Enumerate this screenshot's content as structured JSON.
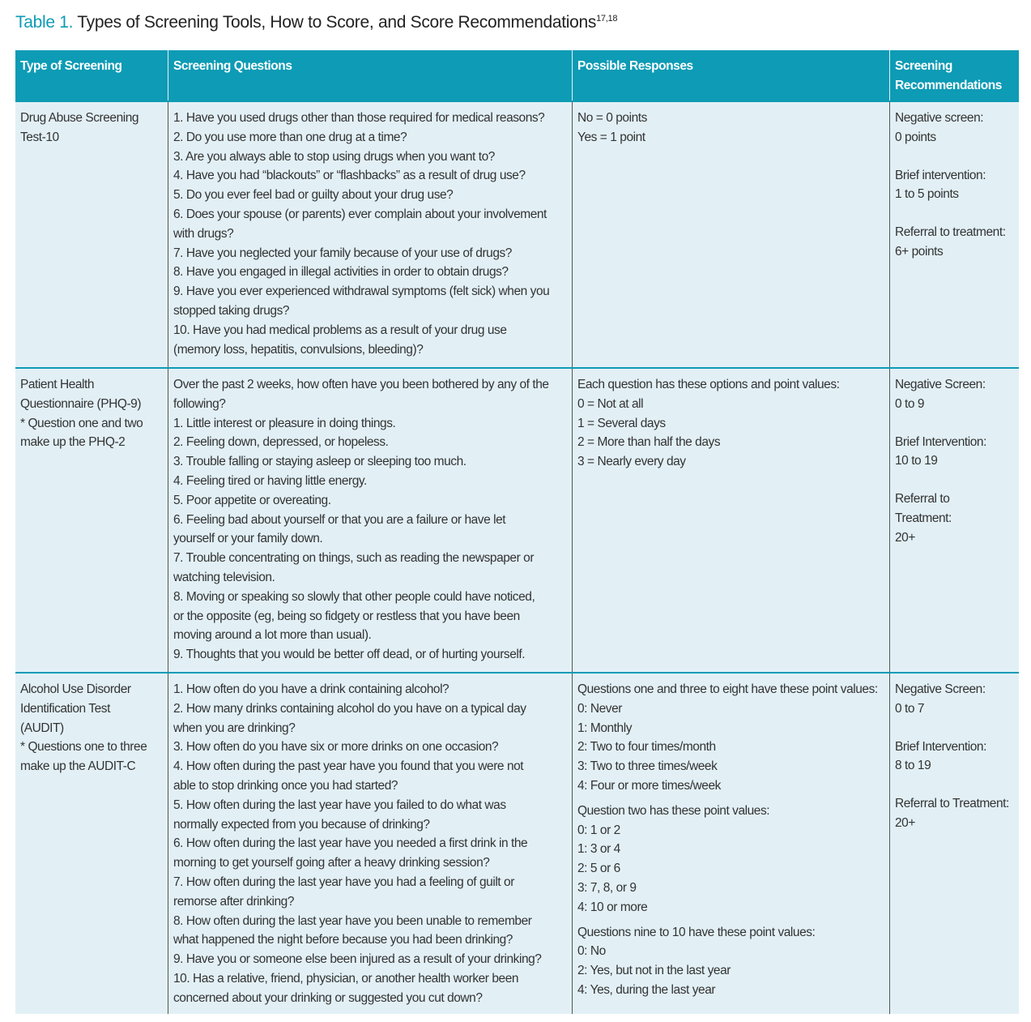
{
  "title": {
    "label": "Table 1.",
    "text": "Types of Screening Tools, How to Score, and Score Recommendations",
    "refs": "17,18"
  },
  "table": {
    "headers": [
      "Type of Screening",
      "Screening Questions",
      "Possible Responses",
      [
        "Screening",
        "Recommendations"
      ]
    ],
    "rows": [
      {
        "type": [
          "Drug Abuse Screening",
          "Test-10"
        ],
        "questions": [
          "1. Have you used drugs other than those required for medical reasons?",
          "2. Do you use more than one drug at a time?",
          "3. Are you always able to stop using drugs when you want to?",
          "4. Have you had “blackouts” or “flashbacks” as a result of drug use?",
          "5. Do you ever feel bad or guilty about your drug use?",
          "6. Does your spouse (or parents) ever complain about your involvement",
          "with drugs?",
          "7. Have you neglected your family because of your use of drugs?",
          "8. Have you engaged in illegal activities in order to obtain drugs?",
          "9. Have you ever experienced withdrawal symptoms (felt sick) when you",
          "stopped taking drugs?",
          "10. Have you had medical problems as a result of your drug use",
          "(memory loss, hepatitis, convulsions, bleeding)?"
        ],
        "responses": [
          [
            "No = 0 points",
            "Yes = 1 point"
          ]
        ],
        "recommendations": [
          [
            "Negative screen:",
            "0 points"
          ],
          [
            "Brief intervention:",
            "1 to 5 points"
          ],
          [
            "Referral to treatment:",
            "6+ points"
          ]
        ]
      },
      {
        "type": [
          "Patient Health",
          "Questionnaire (PHQ-9)",
          "* Question one and two",
          "make up the PHQ-2"
        ],
        "questions": [
          "Over the past 2 weeks, how often have you been bothered by any of the",
          "following?",
          "1. Little interest or pleasure in doing things.",
          "2. Feeling down, depressed, or hopeless.",
          "3. Trouble falling or staying asleep or sleeping too much.",
          "4. Feeling tired or having little energy.",
          "5. Poor appetite or overeating.",
          "6. Feeling bad about yourself or that you are a failure or have let",
          "yourself or your family down.",
          "7. Trouble concentrating on things, such as reading the newspaper or",
          "watching television.",
          "8. Moving or speaking so slowly that other people could have noticed,",
          "or the opposite (eg, being so fidgety or restless that you have been",
          "moving around a lot more than usual).",
          "9. Thoughts that you would be better off dead, or of hurting yourself."
        ],
        "responses": [
          [
            "Each question has these options and point values:",
            "0 = Not at all",
            "1 = Several days",
            "2 = More than half the days",
            "3 = Nearly every day"
          ]
        ],
        "recommendations": [
          [
            "Negative Screen:",
            "0 to 9"
          ],
          [
            "Brief Intervention:",
            "10  to 19"
          ],
          [
            "Referral to",
            "Treatment:",
            "20+"
          ]
        ]
      },
      {
        "type": [
          "Alcohol Use Disorder",
          "Identification Test",
          "(AUDIT)",
          "* Questions one to three",
          "make up the AUDIT-C"
        ],
        "questions": [
          "1. How often do you have a drink containing alcohol?",
          "2. How many drinks containing alcohol do you have on a typical day",
          "when you are drinking?",
          "3. How often do you have six or more drinks on one occasion?",
          "4. How often during the past year have you found that you were not",
          "able to stop drinking once you had started?",
          "5. How often during the last year have you failed to do what was",
          "normally expected from you because of drinking?",
          "6. How often during the last year have you needed a first drink in the",
          "morning to get yourself going after a heavy drinking session?",
          "7. How often during the last year have you had a feeling of guilt or",
          "remorse after drinking?",
          "8. How often during the last year have you been unable to remember",
          "what happened the night before because you had been drinking?",
          "9. Have you or someone else been injured as a result of your drinking?",
          "10. Has a relative, friend, physician, or another health worker been",
          "concerned about your drinking or suggested you cut down?"
        ],
        "responses": [
          [
            "Questions one and three to eight have these point values:",
            "0: Never",
            "1: Monthly",
            "2: Two to four times/month",
            "3: Two to three times/week",
            "4: Four or more times/week"
          ],
          [
            "Question two has these point values:",
            "0: 1 or 2",
            "1: 3 or 4",
            "2: 5 or 6",
            "3: 7, 8, or 9",
            "4: 10 or more"
          ],
          [
            "Questions nine to 10 have these point values:",
            "0: No",
            "2: Yes, but not in the last year",
            "4: Yes, during the last year"
          ]
        ],
        "recommendations": [
          [
            "Negative Screen:",
            "0 to 7"
          ],
          [
            "Brief Intervention:",
            "8 to 19"
          ],
          [
            "Referral to Treatment:",
            "20+"
          ]
        ]
      }
    ]
  }
}
